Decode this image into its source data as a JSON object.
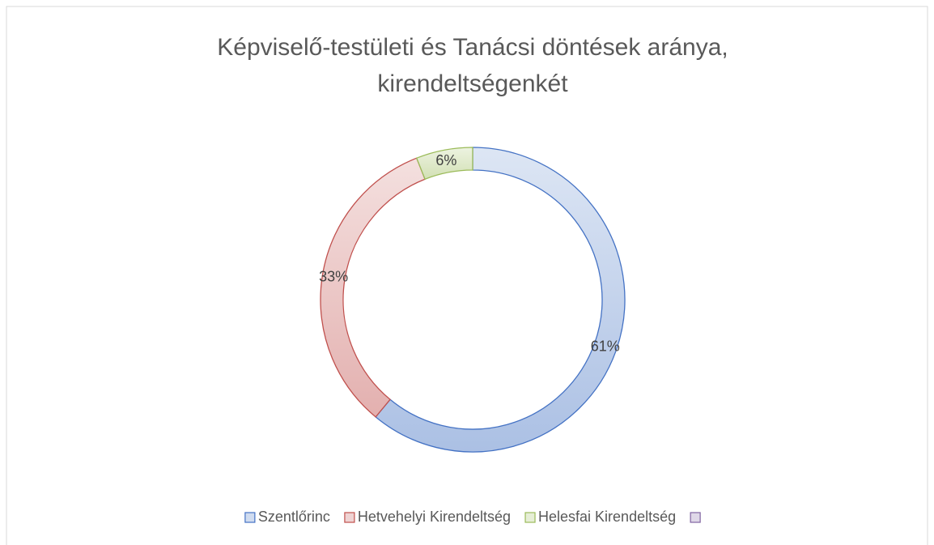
{
  "chart_data": {
    "type": "donut",
    "title": "Képviselő-testületi és Tanácsi döntések aránya, kirendeltségenként",
    "title_lines": [
      "Képviselő-testületi és Tanácsi döntések aránya,",
      "kirendeltségenkét"
    ],
    "categories": [
      "Szentlőrinc",
      "Hetvehelyi Kirendeltség",
      "Helesfai Kirendeltség",
      null
    ],
    "values": [
      61,
      33,
      6,
      0
    ],
    "value_labels": [
      "61%",
      "33%",
      "6%",
      null
    ],
    "colors": [
      "#4472c4",
      "#c0504d",
      "#9bbb59",
      "#8064a2"
    ],
    "legend": "bottom"
  }
}
